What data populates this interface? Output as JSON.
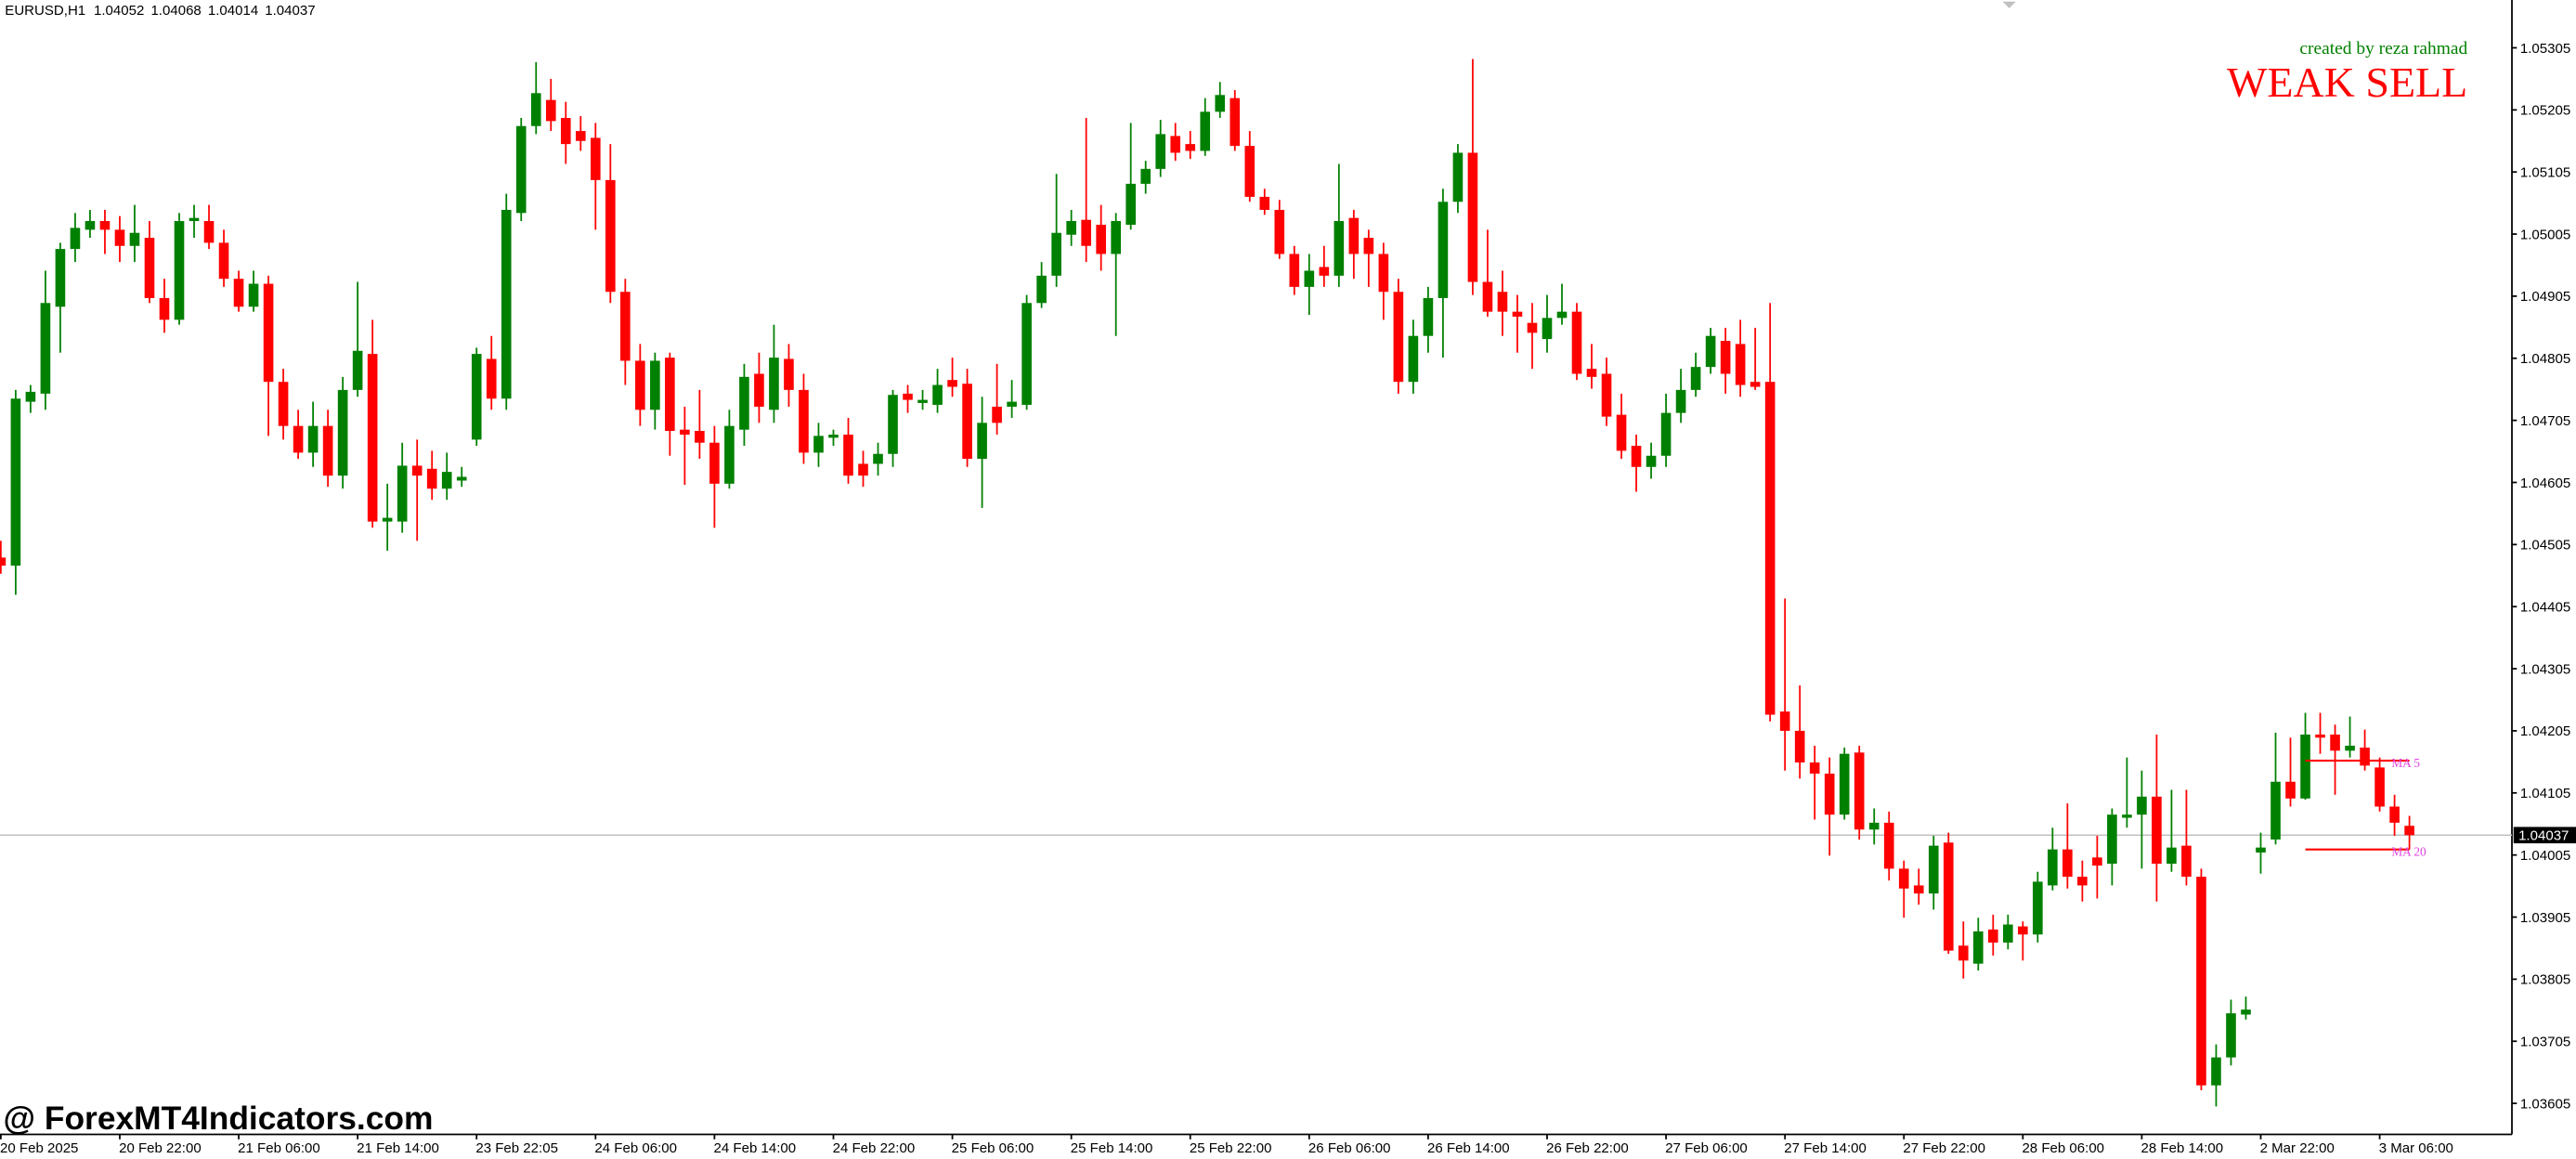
{
  "chart_data": {
    "type": "candlestick",
    "symbol": "EURUSD,H1",
    "annotation_credit": "created by reza rahmad",
    "annotation_signal": "WEAK SELL",
    "watermark": "@ ForexMT4Indicators.com",
    "up_color": "#008000",
    "down_color": "#ff0000",
    "categories": [
      "20 Feb 2025",
      null,
      null,
      null,
      null,
      null,
      null,
      null,
      "20 Feb 22:00",
      null,
      null,
      null,
      null,
      null,
      null,
      null,
      "21 Feb 06:00",
      null,
      null,
      null,
      null,
      null,
      null,
      null,
      "21 Feb 14:00",
      null,
      null,
      null,
      null,
      null,
      null,
      null,
      "23 Feb 22:05",
      null,
      null,
      null,
      null,
      null,
      null,
      null,
      "24 Feb 06:00",
      null,
      null,
      null,
      null,
      null,
      null,
      null,
      "24 Feb 14:00",
      null,
      null,
      null,
      null,
      null,
      null,
      null,
      "24 Feb 22:00",
      null,
      null,
      null,
      null,
      null,
      null,
      null,
      "25 Feb 06:00",
      null,
      null,
      null,
      null,
      null,
      null,
      null,
      "25 Feb 14:00",
      null,
      null,
      null,
      null,
      null,
      null,
      null,
      "25 Feb 22:00",
      null,
      null,
      null,
      null,
      null,
      null,
      null,
      "26 Feb 06:00",
      null,
      null,
      null,
      null,
      null,
      null,
      null,
      "26 Feb 14:00",
      null,
      null,
      null,
      null,
      null,
      null,
      null,
      "26 Feb 22:00",
      null,
      null,
      null,
      null,
      null,
      null,
      null,
      "27 Feb 06:00",
      null,
      null,
      null,
      null,
      null,
      null,
      null,
      "27 Feb 14:00",
      null,
      null,
      null,
      null,
      null,
      null,
      null,
      "27 Feb 22:00",
      null,
      null,
      null,
      null,
      null,
      null,
      null,
      "28 Feb 06:00",
      null,
      null,
      null,
      null,
      null,
      null,
      null,
      "28 Feb 14:00",
      null,
      null,
      null,
      null,
      null,
      null,
      null,
      "2 Mar 22:00",
      null,
      null,
      null,
      null,
      null,
      null,
      null,
      "3 Mar 06:00",
      null,
      null
    ],
    "open": [
      1.04484,
      1.04471,
      1.04735,
      1.04748,
      1.04888,
      1.04981,
      1.05012,
      1.05026,
      1.05012,
      1.04986,
      1.04999,
      1.04902,
      1.04867,
      1.05026,
      1.05026,
      1.04991,
      1.04933,
      1.04888,
      1.04925,
      1.04767,
      1.04696,
      1.04653,
      1.04696,
      1.04616,
      1.04754,
      1.04812,
      1.04542,
      1.04542,
      1.04632,
      1.04627,
      1.04595,
      1.04608,
      1.04674,
      1.04804,
      1.0474,
      1.05039,
      1.05179,
      1.05221,
      1.05192,
      1.05171,
      1.0516,
      1.05092,
      1.04912,
      1.04801,
      1.04722,
      1.04806,
      1.0469,
      1.04688,
      1.04669,
      1.04603,
      1.0469,
      1.0478,
      1.04722,
      1.04804,
      1.04754,
      1.04653,
      1.04677,
      1.04682,
      1.04635,
      1.04635,
      1.04651,
      1.04748,
      1.04733,
      1.0473,
      1.0477,
      1.04764,
      1.04643,
      1.04727,
      1.04727,
      1.0473,
      1.04894,
      1.04938,
      1.05004,
      1.05028,
      1.0502,
      1.04973,
      1.0502,
      1.05086,
      1.0511,
      1.05163,
      1.0515,
      1.05139,
      1.05202,
      1.05224,
      1.05147,
      1.05065,
      1.05044,
      1.04973,
      1.0492,
      1.04952,
      1.04938,
      1.05031,
      1.04999,
      1.04973,
      1.04912,
      1.04767,
      1.04841,
      1.04902,
      1.05057,
      1.05136,
      1.04928,
      1.04912,
      1.0488,
      1.04862,
      1.04836,
      1.0487,
      1.0488,
      1.04788,
      1.0478,
      1.04714,
      1.04664,
      1.0463,
      1.04648,
      1.04717,
      1.04754,
      1.04791,
      1.04833,
      1.04828,
      1.04767,
      1.04767,
      1.04236,
      1.04205,
      1.04154,
      1.04136,
      1.0407,
      1.0417,
      1.04046,
      1.04057,
      1.03983,
      1.03956,
      1.03943,
      1.04025,
      1.03859,
      1.0383,
      1.03885,
      1.03864,
      1.0389,
      1.03877,
      1.03956,
      1.04014,
      1.0397,
      1.04001,
      1.03991,
      1.04065,
      1.0407,
      1.04099,
      1.03991,
      1.0402,
      1.0397,
      1.03634,
      1.03679,
      1.03748,
      1.04009,
      1.0403,
      1.04123,
      1.04096,
      1.04199,
      1.04199,
      1.04173,
      1.04178,
      1.04146,
      1.04083,
      1.04052
    ],
    "high": [
      1.04511,
      1.04754,
      1.04762,
      1.04946,
      1.04991,
      1.05039,
      1.05044,
      1.05044,
      1.05034,
      1.05052,
      1.05026,
      1.04933,
      1.05039,
      1.05052,
      1.05052,
      1.05012,
      1.04946,
      1.04946,
      1.04938,
      1.04788,
      1.04722,
      1.04735,
      1.04722,
      1.04775,
      1.04928,
      1.04867,
      1.04603,
      1.04669,
      1.04674,
      1.04656,
      1.04653,
      1.0463,
      1.04822,
      1.04841,
      1.0507,
      1.05192,
      1.05282,
      1.05255,
      1.05218,
      1.05195,
      1.05184,
      1.0515,
      1.04933,
      1.04828,
      1.04814,
      1.04814,
      1.04727,
      1.04754,
      1.04696,
      1.04722,
      1.04796,
      1.04814,
      1.04859,
      1.04828,
      1.0478,
      1.04701,
      1.0469,
      1.04709,
      1.04656,
      1.04669,
      1.04754,
      1.04762,
      1.04754,
      1.04788,
      1.04806,
      1.04788,
      1.04743,
      1.04796,
      1.0477,
      1.04907,
      1.0496,
      1.05102,
      1.05044,
      1.05192,
      1.05052,
      1.05039,
      1.05184,
      1.05123,
      1.05189,
      1.05184,
      1.05171,
      1.05224,
      1.0525,
      1.05237,
      1.05171,
      1.05078,
      1.0506,
      1.04986,
      1.04973,
      1.04986,
      1.05118,
      1.05044,
      1.05012,
      1.04991,
      1.04933,
      1.04867,
      1.0492,
      1.05078,
      1.0515,
      1.05287,
      1.05012,
      1.04946,
      1.04907,
      1.04894,
      1.04907,
      1.04925,
      1.04894,
      1.04828,
      1.04806,
      1.04748,
      1.04682,
      1.04669,
      1.04748,
      1.04788,
      1.04814,
      1.04854,
      1.04854,
      1.04867,
      1.04854,
      1.04894,
      1.04418,
      1.04278,
      1.04181,
      1.04162,
      1.04178,
      1.04181,
      1.0408,
      1.04075,
      1.03996,
      1.03983,
      1.04036,
      1.04041,
      1.03898,
      1.03904,
      1.03909,
      1.03909,
      1.03898,
      1.03978,
      1.04049,
      1.04088,
      1.03996,
      1.04036,
      1.0408,
      1.04162,
      1.04141,
      1.04199,
      1.0411,
      1.0411,
      1.03983,
      1.037,
      1.03772,
      1.03777,
      1.04041,
      1.04202,
      1.04194,
      1.04234,
      1.04234,
      1.04215,
      1.04228,
      1.04207,
      1.04162,
      1.04102,
      1.04068
    ],
    "low": [
      1.04458,
      1.04424,
      1.04717,
      1.04722,
      1.04814,
      1.0496,
      1.04999,
      1.04973,
      1.0496,
      1.0496,
      1.04894,
      1.04846,
      1.04859,
      1.04999,
      1.04981,
      1.0492,
      1.0488,
      1.0488,
      1.0468,
      1.04674,
      1.04643,
      1.0463,
      1.04598,
      1.04595,
      1.04743,
      1.04532,
      1.04495,
      1.04524,
      1.04511,
      1.04577,
      1.04577,
      1.04598,
      1.04664,
      1.04722,
      1.04722,
      1.05026,
      1.05166,
      1.05171,
      1.05118,
      1.05139,
      1.05012,
      1.04894,
      1.04762,
      1.04696,
      1.0469,
      1.04648,
      1.04601,
      1.04643,
      1.04532,
      1.04595,
      1.04664,
      1.04701,
      1.04701,
      1.04727,
      1.04635,
      1.0463,
      1.04664,
      1.04603,
      1.04598,
      1.04616,
      1.0463,
      1.04717,
      1.04722,
      1.04717,
      1.04743,
      1.0463,
      1.04564,
      1.04682,
      1.04709,
      1.04722,
      1.04886,
      1.0492,
      1.04986,
      1.0496,
      1.04946,
      1.04841,
      1.05012,
      1.0507,
      1.05097,
      1.05123,
      1.05126,
      1.05131,
      1.05192,
      1.05139,
      1.05057,
      1.05036,
      1.04965,
      1.04907,
      1.04875,
      1.0492,
      1.0492,
      1.04933,
      1.0492,
      1.04867,
      1.04748,
      1.04748,
      1.04814,
      1.04806,
      1.05039,
      1.04907,
      1.04872,
      1.04841,
      1.04814,
      1.04788,
      1.04814,
      1.04859,
      1.0477,
      1.04756,
      1.04696,
      1.04643,
      1.0459,
      1.04611,
      1.0463,
      1.04701,
      1.04743,
      1.0478,
      1.04748,
      1.04743,
      1.04754,
      1.0422,
      1.04141,
      1.04128,
      1.04062,
      1.04004,
      1.04062,
      1.0403,
      1.04022,
      1.03964,
      1.03904,
      1.03925,
      1.03917,
      1.03846,
      1.03806,
      1.03819,
      1.03843,
      1.03853,
      1.03835,
      1.03864,
      1.03948,
      1.03951,
      1.0393,
      1.03935,
      1.03956,
      1.04049,
      1.03983,
      1.0393,
      1.03978,
      1.03956,
      1.03626,
      1.036,
      1.03666,
      1.0374,
      1.03975,
      1.04022,
      1.04083,
      1.04094,
      1.04168,
      1.04102,
      1.04162,
      1.04141,
      1.04075,
      1.04036,
      1.04014
    ],
    "close": [
      1.04471,
      1.0474,
      1.04751,
      1.04894,
      1.04981,
      1.05015,
      1.05026,
      1.05012,
      1.04986,
      1.05007,
      1.04902,
      1.04867,
      1.05026,
      1.05031,
      1.04991,
      1.04933,
      1.04888,
      1.04925,
      1.04767,
      1.04696,
      1.04653,
      1.04696,
      1.04616,
      1.04754,
      1.04817,
      1.04542,
      1.04548,
      1.04632,
      1.04616,
      1.04595,
      1.04622,
      1.04614,
      1.04812,
      1.0474,
      1.05044,
      1.05179,
      1.05232,
      1.05187,
      1.0515,
      1.05155,
      1.05092,
      1.04912,
      1.04801,
      1.04722,
      1.04801,
      1.04688,
      1.04682,
      1.04669,
      1.04603,
      1.04696,
      1.04775,
      1.04727,
      1.04806,
      1.04754,
      1.04653,
      1.0468,
      1.04682,
      1.04616,
      1.04616,
      1.04651,
      1.04746,
      1.04738,
      1.04738,
      1.04762,
      1.04759,
      1.04643,
      1.04701,
      1.04701,
      1.04735,
      1.04894,
      1.04938,
      1.05007,
      1.05026,
      1.04986,
      1.04973,
      1.05026,
      1.05086,
      1.0511,
      1.05166,
      1.05136,
      1.05139,
      1.05202,
      1.05229,
      1.05147,
      1.05065,
      1.05044,
      1.04973,
      1.0492,
      1.04946,
      1.04938,
      1.05026,
      1.04973,
      1.04973,
      1.04912,
      1.04767,
      1.04841,
      1.04902,
      1.05057,
      1.05136,
      1.04928,
      1.0488,
      1.0488,
      1.04872,
      1.04846,
      1.0487,
      1.0488,
      1.0478,
      1.04775,
      1.04711,
      1.04656,
      1.0463,
      1.04648,
      1.04717,
      1.04754,
      1.04791,
      1.04841,
      1.0478,
      1.04762,
      1.04759,
      1.04231,
      1.04205,
      1.04154,
      1.04136,
      1.0407,
      1.04168,
      1.04046,
      1.04057,
      1.03983,
      1.03951,
      1.03943,
      1.0402,
      1.03851,
      1.03835,
      1.03882,
      1.03864,
      1.03893,
      1.03877,
      1.03962,
      1.04014,
      1.0397,
      1.03956,
      1.03988,
      1.0407,
      1.0407,
      1.04099,
      1.03991,
      1.04017,
      1.0397,
      1.03634,
      1.03679,
      1.0375,
      1.03756,
      1.04017,
      1.04123,
      1.04096,
      1.04199,
      1.04194,
      1.04173,
      1.04181,
      1.04149,
      1.04083,
      1.04057,
      1.04037
    ],
    "moving_averages": [
      {
        "name": "MA 5",
        "value": 1.04157,
        "color": "#ff0000",
        "label_color": "#e040e0"
      },
      {
        "name": "MA 20",
        "value": 1.04014,
        "color": "#ff0000",
        "label_color": "#e040e0"
      }
    ],
    "ylim": [
      1.03555,
      1.05382
    ],
    "yticks": [
      1.05305,
      1.05205,
      1.05105,
      1.05005,
      1.04905,
      1.04805,
      1.04705,
      1.04605,
      1.04505,
      1.04405,
      1.04305,
      1.04205,
      1.04105,
      1.04005,
      1.03905,
      1.03805,
      1.03705,
      1.03605
    ]
  }
}
